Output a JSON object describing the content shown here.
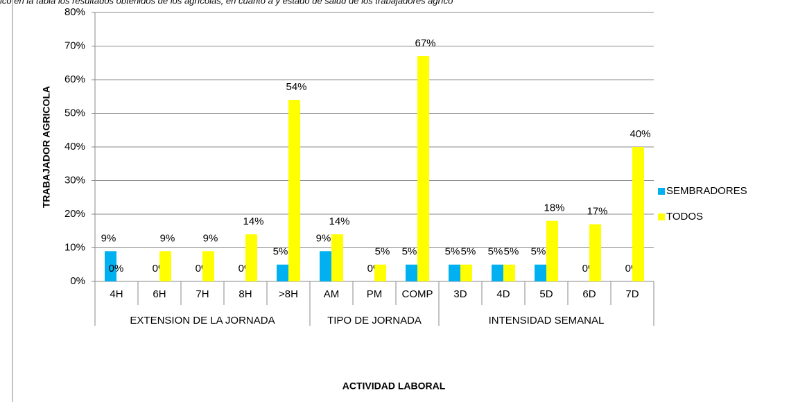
{
  "chart_data": {
    "type": "bar",
    "caption": "ico en la tabla los resultados obtenidos de los agrícolas, en cuanto a y estado de salud de los trabajadores agríco",
    "x_label": "ACTIVIDAD LABORAL",
    "y_label": "TRABAJADOR AGRICOLA",
    "category_groups": [
      {
        "name": "EXTENSION DE LA JORNADA",
        "categories": [
          "4H",
          "6H",
          "7H",
          "8H",
          ">8H"
        ]
      },
      {
        "name": "TIPO DE JORNADA",
        "categories": [
          "AM",
          "PM",
          "COMP"
        ]
      },
      {
        "name": "INTENSIDAD SEMANAL",
        "categories": [
          "3D",
          "4D",
          "5D",
          "6D",
          "7D"
        ]
      }
    ],
    "series": [
      {
        "name": "SEMBRADORES",
        "color": "#00b0f0",
        "values": [
          9,
          0,
          0,
          0,
          5,
          9,
          0,
          5,
          5,
          5,
          5,
          0,
          0
        ],
        "value_labels": [
          "9%",
          "0%",
          "0%",
          "0%",
          "5%",
          "9%",
          "0%",
          "5%",
          "5%",
          "5%",
          "5%",
          "0%",
          "0%"
        ]
      },
      {
        "name": "TODOS",
        "color": "#ffff00",
        "values": [
          0,
          9,
          9,
          14,
          54,
          14,
          5,
          67,
          5,
          5,
          18,
          17,
          40
        ],
        "value_labels": [
          "0%",
          "9%",
          "9%",
          "14%",
          "54%",
          "14%",
          "5%",
          "67%",
          "5%",
          "5%",
          "18%",
          "17%",
          "40%"
        ]
      }
    ],
    "ylim": [
      0,
      80
    ],
    "yticks": [
      {
        "value": 0,
        "label": "0%"
      },
      {
        "value": 10,
        "label": "10%"
      },
      {
        "value": 20,
        "label": "20%"
      },
      {
        "value": 30,
        "label": "30%"
      },
      {
        "value": 40,
        "label": "40%"
      },
      {
        "value": 50,
        "label": "50%"
      },
      {
        "value": 60,
        "label": "60%"
      },
      {
        "value": 70,
        "label": "70%"
      },
      {
        "value": 80,
        "label": "80%"
      }
    ],
    "grid": true,
    "legend": "right"
  }
}
